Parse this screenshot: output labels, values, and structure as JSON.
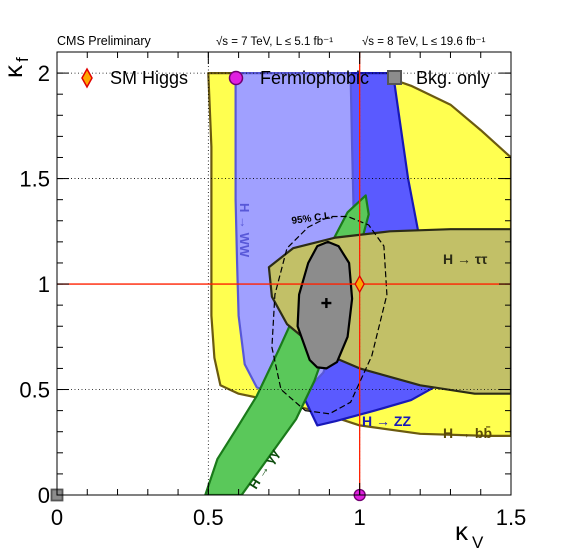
{
  "header": {
    "experiment": "CMS Preliminary",
    "lumi_7tev": "√s = 7 TeV, L ≤ 5.1 fb⁻¹",
    "lumi_8tev": "√s = 8 TeV, L ≤ 19.6 fb⁻¹"
  },
  "chart_data": {
    "type": "scatter",
    "xlabel": "κV",
    "ylabel": "κf",
    "xlim": [
      0,
      1.5
    ],
    "ylim": [
      0,
      2.1
    ],
    "x_ticks": [
      {
        "value": 0,
        "label": "0"
      },
      {
        "value": 0.5,
        "label": "0.5"
      },
      {
        "value": 1,
        "label": "1"
      },
      {
        "value": 1.5,
        "label": "1.5"
      }
    ],
    "y_ticks": [
      {
        "value": 0,
        "label": "0"
      },
      {
        "value": 0.5,
        "label": "0.5"
      },
      {
        "value": 1,
        "label": "1"
      },
      {
        "value": 1.5,
        "label": "1.5"
      },
      {
        "value": 2,
        "label": "2"
      }
    ],
    "legend": {
      "placement": "top",
      "items": [
        {
          "label": "SM Higgs",
          "marker": "diamond",
          "fill": "#ffa500",
          "stroke": "#e00000"
        },
        {
          "label": "Fermiophobic",
          "marker": "circle",
          "fill": "#e020e0",
          "stroke": "#700070"
        },
        {
          "label": "Bkg. only",
          "marker": "square",
          "fill": "#8c8c8c",
          "stroke": "#555555"
        }
      ]
    },
    "points": [
      {
        "name": "SM Higgs",
        "x": 1,
        "y": 1
      },
      {
        "name": "Fermiophobic",
        "x": 1,
        "y": 0
      },
      {
        "name": "Bkg. only",
        "x": 0,
        "y": 0
      },
      {
        "name": "best fit",
        "x": 0.89,
        "y": 0.91
      }
    ],
    "reference_lines": [
      {
        "axis": "x",
        "value": 1,
        "color": "#ff2000"
      },
      {
        "axis": "y",
        "value": 1,
        "color": "#ff2000"
      }
    ],
    "contours": [
      {
        "channel": "H→bb",
        "label": "H → bb̄",
        "fill": "#ffff50",
        "stroke": "#6b5a10",
        "points": [
          [
            0.5,
            2.0
          ],
          [
            0.7,
            2.0
          ],
          [
            0.82,
            2.0
          ],
          [
            0.9,
            2.0
          ],
          [
            1.05,
            2.0
          ],
          [
            1.17,
            1.94
          ],
          [
            1.3,
            1.85
          ],
          [
            1.4,
            1.73
          ],
          [
            1.5,
            1.6
          ],
          [
            1.5,
            0.28
          ],
          [
            1.42,
            0.28
          ],
          [
            1.2,
            0.29
          ],
          [
            1.0,
            0.33
          ],
          [
            0.85,
            0.4
          ],
          [
            0.7,
            0.45
          ],
          [
            0.6,
            0.48
          ],
          [
            0.54,
            0.52
          ],
          [
            0.52,
            0.65
          ],
          [
            0.51,
            0.85
          ],
          [
            0.51,
            1.1
          ],
          [
            0.51,
            1.4
          ],
          [
            0.51,
            1.65
          ],
          [
            0.5,
            2.0
          ]
        ]
      },
      {
        "channel": "H→ZZ",
        "label": "H → ZZ",
        "fill": "#5a5aff",
        "stroke": "#1818b8",
        "points": [
          [
            0.7,
            2.0
          ],
          [
            1.11,
            2.0
          ],
          [
            1.13,
            1.8
          ],
          [
            1.16,
            1.5
          ],
          [
            1.2,
            1.2
          ],
          [
            1.24,
            0.88
          ],
          [
            1.29,
            0.65
          ],
          [
            1.27,
            0.53
          ],
          [
            1.17,
            0.45
          ],
          [
            1.05,
            0.4
          ],
          [
            0.92,
            0.35
          ],
          [
            0.86,
            0.33
          ],
          [
            0.82,
            0.45
          ],
          [
            0.79,
            0.65
          ],
          [
            0.76,
            0.95
          ],
          [
            0.73,
            1.25
          ],
          [
            0.71,
            1.55
          ],
          [
            0.7,
            1.8
          ],
          [
            0.7,
            2.0
          ]
        ]
      },
      {
        "channel": "H→WW",
        "label": "H → WW",
        "fill": "#a0a0ff",
        "stroke": "#5858d8",
        "points": [
          [
            0.59,
            2.0
          ],
          [
            0.97,
            2.0
          ],
          [
            0.975,
            1.65
          ],
          [
            0.98,
            1.35
          ],
          [
            0.97,
            1.08
          ],
          [
            0.94,
            0.8
          ],
          [
            0.88,
            0.58
          ],
          [
            0.81,
            0.475
          ],
          [
            0.73,
            0.47
          ],
          [
            0.66,
            0.51
          ],
          [
            0.62,
            0.62
          ],
          [
            0.6,
            0.85
          ],
          [
            0.595,
            1.1
          ],
          [
            0.59,
            1.4
          ],
          [
            0.59,
            2.0
          ]
        ]
      },
      {
        "channel": "H→γγ",
        "label": "H → γγ",
        "fill": "#5ac85a",
        "stroke": "#1a7a1a",
        "points": [
          [
            0.49,
            0.0
          ],
          [
            0.61,
            0.0
          ],
          [
            0.66,
            0.1
          ],
          [
            0.72,
            0.22
          ],
          [
            0.79,
            0.36
          ],
          [
            0.85,
            0.54
          ],
          [
            0.91,
            0.78
          ],
          [
            0.98,
            1.06
          ],
          [
            1.03,
            1.33
          ],
          [
            1.02,
            1.42
          ],
          [
            0.96,
            1.34
          ],
          [
            0.88,
            1.12
          ],
          [
            0.8,
            0.9
          ],
          [
            0.73,
            0.68
          ],
          [
            0.66,
            0.47
          ],
          [
            0.6,
            0.33
          ],
          [
            0.53,
            0.17
          ],
          [
            0.49,
            0.0
          ]
        ]
      },
      {
        "channel": "H→ττ",
        "label": "H → ττ",
        "fill": "#c2c067",
        "stroke": "#2c2c16",
        "points": [
          [
            0.7,
            1.08
          ],
          [
            0.78,
            1.17
          ],
          [
            0.92,
            1.22
          ],
          [
            1.1,
            1.25
          ],
          [
            1.3,
            1.26
          ],
          [
            1.5,
            1.26
          ],
          [
            1.5,
            0.48
          ],
          [
            1.38,
            0.48
          ],
          [
            1.2,
            0.52
          ],
          [
            1.0,
            0.6
          ],
          [
            0.87,
            0.68
          ],
          [
            0.76,
            0.81
          ],
          [
            0.71,
            0.94
          ],
          [
            0.7,
            1.08
          ]
        ]
      },
      {
        "channel": "combined 68% C.L.",
        "fill": "#8c8c8c",
        "stroke": "#000000",
        "points": [
          [
            0.835,
            0.64
          ],
          [
            0.86,
            0.605
          ],
          [
            0.89,
            0.6
          ],
          [
            0.925,
            0.63
          ],
          [
            0.96,
            0.75
          ],
          [
            0.975,
            0.93
          ],
          [
            0.965,
            1.1
          ],
          [
            0.93,
            1.18
          ],
          [
            0.895,
            1.2
          ],
          [
            0.86,
            1.18
          ],
          [
            0.83,
            1.1
          ],
          [
            0.8,
            0.95
          ],
          [
            0.795,
            0.8
          ],
          [
            0.835,
            0.64
          ]
        ]
      },
      {
        "channel": "combined 95% C.L.",
        "label": "95% C.L.",
        "dashed": true,
        "stroke": "#000000",
        "points": [
          [
            0.82,
            0.4
          ],
          [
            0.9,
            0.385
          ],
          [
            0.97,
            0.44
          ],
          [
            1.04,
            0.66
          ],
          [
            1.09,
            0.95
          ],
          [
            1.08,
            1.18
          ],
          [
            1.03,
            1.28
          ],
          [
            0.96,
            1.32
          ],
          [
            0.9,
            1.32
          ],
          [
            0.83,
            1.27
          ],
          [
            0.76,
            1.17
          ],
          [
            0.72,
            0.95
          ],
          [
            0.71,
            0.7
          ],
          [
            0.74,
            0.5
          ],
          [
            0.82,
            0.4
          ]
        ]
      }
    ]
  },
  "colors": {
    "reference": "#ff2000",
    "axis": "#000000",
    "grid": "#000000"
  }
}
